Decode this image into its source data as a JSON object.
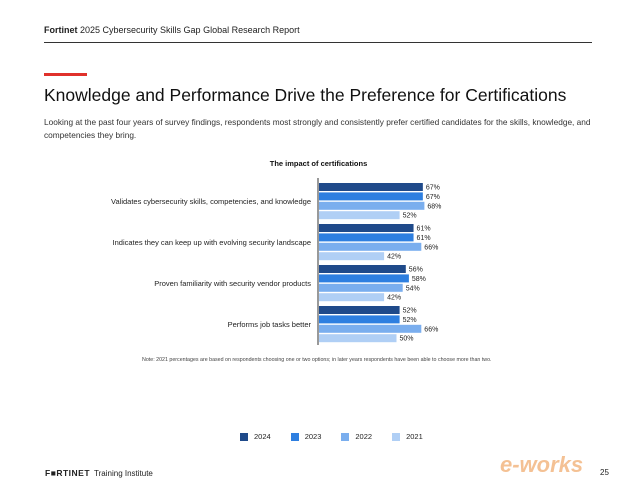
{
  "header": {
    "brand": "Fortinet",
    "report": "2025 Cybersecurity Skills Gap Global Research Report"
  },
  "title": "Knowledge and Performance Drive the Preference for Certifications",
  "subtitle": "Looking at the past four years of survey findings, respondents most strongly and consistently prefer certified candidates for the skills, knowledge, and competencies they bring.",
  "chart_data": {
    "type": "bar",
    "orientation": "horizontal",
    "title": "The impact of certifications",
    "categories": [
      "Validates cybersecurity skills, competencies, and knowledge",
      "Indicates they can keep up with evolving security landscape",
      "Proven familiarity with security vendor products",
      "Performs job tasks better"
    ],
    "series": [
      {
        "name": "2024",
        "color": "#1f4a8a",
        "values": [
          67,
          61,
          56,
          52
        ]
      },
      {
        "name": "2023",
        "color": "#2e7fe0",
        "values": [
          67,
          61,
          58,
          52
        ]
      },
      {
        "name": "2022",
        "color": "#7aaeee",
        "values": [
          68,
          66,
          54,
          66
        ]
      },
      {
        "name": "2021",
        "color": "#b0cff5",
        "values": [
          52,
          42,
          42,
          50
        ]
      }
    ],
    "value_suffix": "%",
    "legend_position": "bottom",
    "grid": false
  },
  "note": "Note: 2021 percentages are based on respondents choosing one or two options; in later years respondents have been able to choose more than two.",
  "footer": {
    "logo": "F■RTINET",
    "label": "Training Institute",
    "page": "25"
  },
  "watermark": "e-works"
}
